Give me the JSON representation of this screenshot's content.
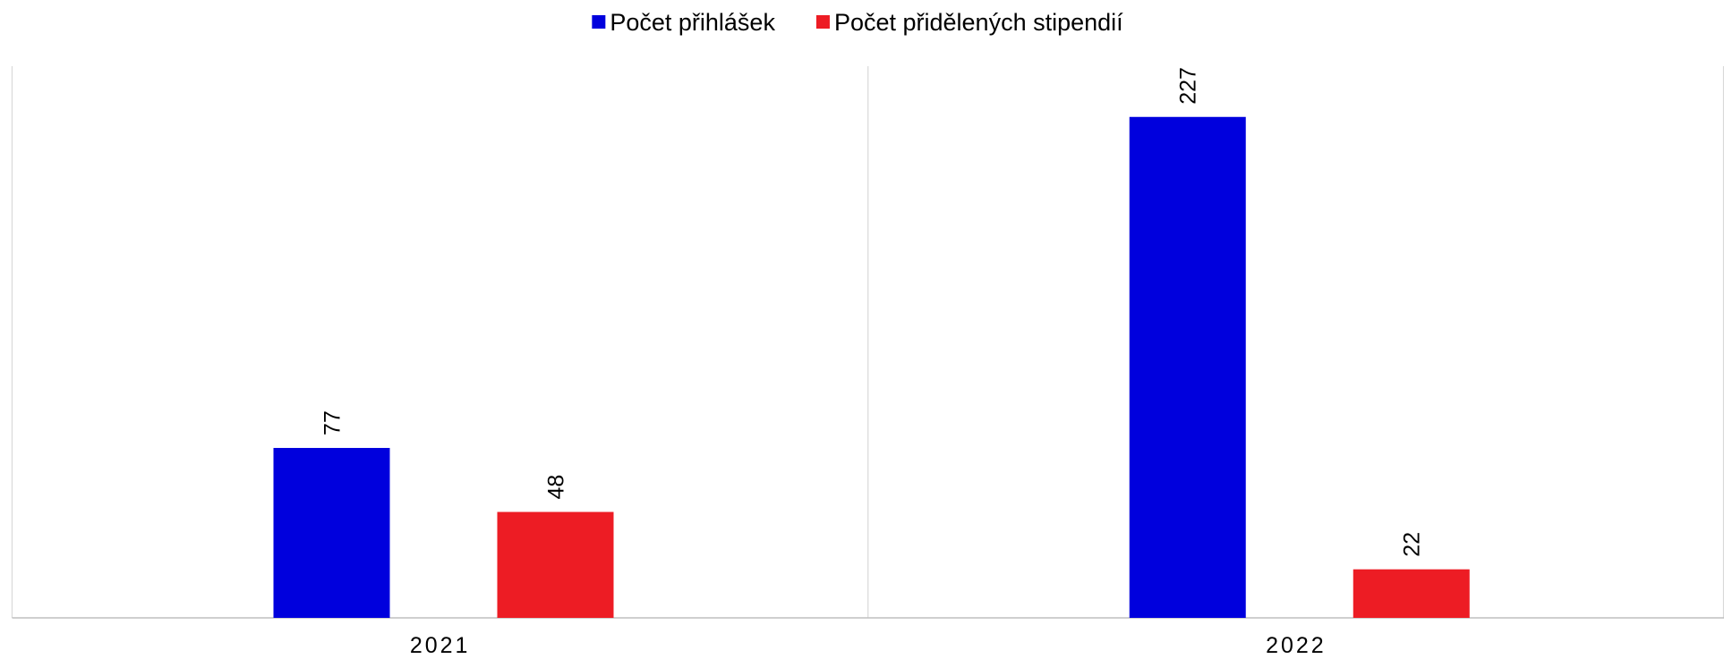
{
  "chart_data": {
    "type": "bar",
    "categories": [
      "2021",
      "2022"
    ],
    "series": [
      {
        "name": "Počet přihlášek",
        "color": "#0000dd",
        "values": [
          77,
          227
        ]
      },
      {
        "name": "Počet přidělených stipendií",
        "color": "#ed1c24",
        "values": [
          48,
          22
        ]
      }
    ],
    "ylim": [
      0,
      250
    ],
    "legend": "top"
  }
}
